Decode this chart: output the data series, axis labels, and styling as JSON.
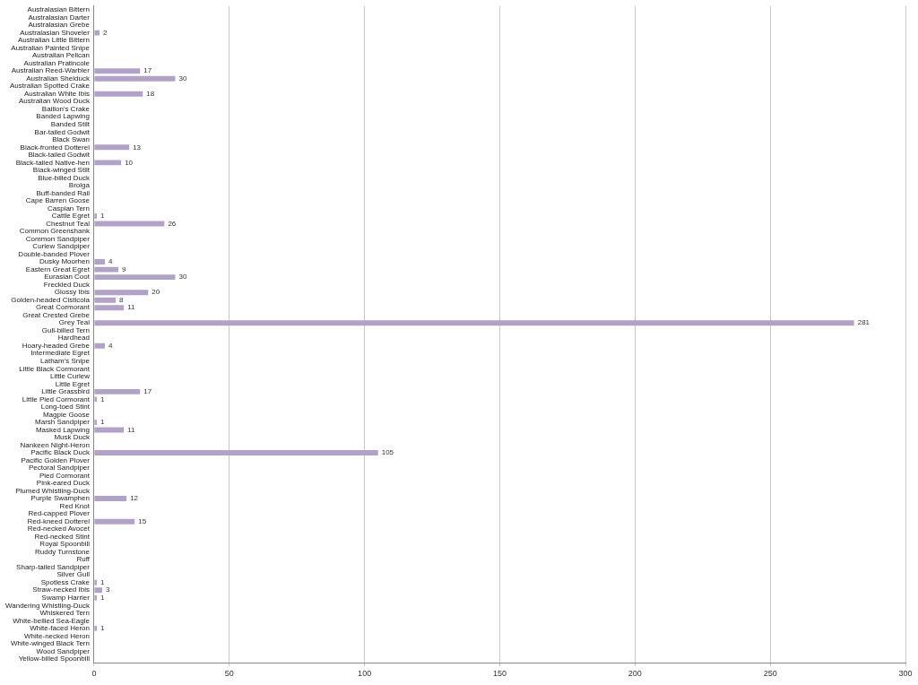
{
  "chart_data": {
    "type": "bar",
    "orientation": "horizontal",
    "categories": [
      "Australasian Bittern",
      "Australasian Darter",
      "Australasian Grebe",
      "Australasian Shoveler",
      "Australian Little Bittern",
      "Australian Painted Snipe",
      "Australian Pelican",
      "Australian Pratincole",
      "Australian Reed-Warbler",
      "Australian Shelduck",
      "Australian Spotted Crake",
      "Australian White Ibis",
      "Australian Wood Duck",
      "Baillon's Crake",
      "Banded Lapwing",
      "Banded Stilt",
      "Bar-tailed Godwit",
      "Black Swan",
      "Black-fronted Dotterel",
      "Black-tailed Godwit",
      "Black-tailed Native-hen",
      "Black-winged Stilt",
      "Blue-billed Duck",
      "Brolga",
      "Buff-banded Rail",
      "Cape Barren Goose",
      "Caspian Tern",
      "Cattle Egret",
      "Chestnut Teal",
      "Common Greenshank",
      "Common Sandpiper",
      "Curlew Sandpiper",
      "Double-banded Plover",
      "Dusky Moorhen",
      "Eastern Great Egret",
      "Eurasian Coot",
      "Freckled Duck",
      "Glossy Ibis",
      "Golden-headed Cisticola",
      "Great Cormorant",
      "Great Crested Grebe",
      "Grey Teal",
      "Gull-billed Tern",
      "Hardhead",
      "Hoary-headed Grebe",
      "Intermediate Egret",
      "Latham's Snipe",
      "Little Black Cormorant",
      "Little Curlew",
      "Little Egret",
      "Little Grassbird",
      "Little Pied Cormorant",
      "Long-toed Stint",
      "Magpie Goose",
      "Marsh Sandpiper",
      "Masked Lapwing",
      "Musk Duck",
      "Nankeen Night-Heron",
      "Pacific Black Duck",
      "Pacific Golden Plover",
      "Pectoral Sandpiper",
      "Pied Cormorant",
      "Pink-eared Duck",
      "Plumed Whistling-Duck",
      "Purple Swamphen",
      "Red Knot",
      "Red-capped Plover",
      "Red-kneed Dotterel",
      "Red-necked Avocet",
      "Red-necked Stint",
      "Royal Spoonbill",
      "Ruddy Turnstone",
      "Ruff",
      "Sharp-tailed Sandpiper",
      "Silver Gull",
      "Spotless Crake",
      "Straw-necked Ibis",
      "Swamp Harrier",
      "Wandering Whistling-Duck",
      "Whiskered Tern",
      "White-bellied Sea-Eagle",
      "White-faced Heron",
      "White-necked Heron",
      "White-winged Black Tern",
      "Wood Sandpiper",
      "Yellow-billed Spoonbill"
    ],
    "values": [
      null,
      null,
      null,
      2,
      null,
      null,
      null,
      null,
      17,
      30,
      null,
      18,
      null,
      null,
      null,
      null,
      null,
      null,
      13,
      null,
      10,
      null,
      null,
      null,
      null,
      null,
      null,
      1,
      26,
      null,
      null,
      null,
      null,
      4,
      9,
      30,
      null,
      20,
      8,
      11,
      null,
      281,
      null,
      null,
      4,
      null,
      null,
      null,
      null,
      null,
      17,
      1,
      null,
      null,
      1,
      11,
      null,
      null,
      105,
      null,
      null,
      null,
      null,
      null,
      12,
      null,
      null,
      15,
      null,
      null,
      null,
      null,
      null,
      null,
      null,
      1,
      3,
      1,
      null,
      null,
      null,
      1,
      null,
      null,
      null,
      null
    ],
    "color": "#b3a2c7",
    "xlim": [
      0,
      300
    ],
    "xticks": [
      0,
      50,
      100,
      150,
      200,
      250,
      300
    ],
    "grid": "x",
    "data_labels": true
  }
}
